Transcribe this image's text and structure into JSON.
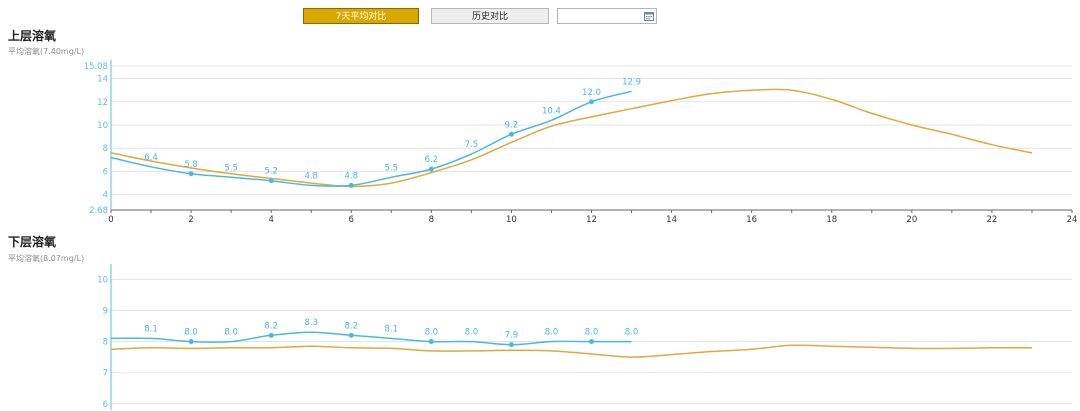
{
  "toolbar": {
    "btn_7day": "7天平均对比",
    "btn_history": "历史对比",
    "date_value": "",
    "calendar_icon": "calendar-icon"
  },
  "colors": {
    "actual": "#4ab9e0",
    "average": "#e0a93a",
    "axis": "#5bbfe6",
    "grid": "#e4e4e4",
    "active_button": "#d9a800"
  },
  "upper": {
    "title": "上层溶氧",
    "subtitle": "平均溶氧(7.40mg/L)"
  },
  "lower": {
    "title": "下层溶氧",
    "subtitle": "平均溶氧(8.07mg/L)"
  },
  "chart_data": [
    {
      "type": "line",
      "title": "上层溶氧",
      "xlabel": "",
      "ylabel": "",
      "xlim": [
        0,
        24
      ],
      "ylim": [
        2.68,
        15.08
      ],
      "x_ticks": [
        0,
        2,
        4,
        6,
        8,
        10,
        12,
        14,
        16,
        18,
        20,
        22,
        24
      ],
      "y_ticks": [
        2.68,
        4,
        6,
        8,
        10,
        12,
        14,
        15.08
      ],
      "grid": true,
      "legend": "none",
      "series": [
        {
          "role": "actual",
          "x": [
            0,
            1,
            2,
            3,
            4,
            5,
            6,
            7,
            8,
            9,
            10,
            11,
            12,
            13
          ],
          "y": [
            7.2,
            6.4,
            5.8,
            5.5,
            5.2,
            4.8,
            4.8,
            5.5,
            6.2,
            7.5,
            9.2,
            10.4,
            12.0,
            12.9
          ],
          "labels": [
            "",
            "6.4",
            "5.8",
            "5.5",
            "5.2",
            "4.8",
            "4.8",
            "5.5",
            "6.2",
            "7.5",
            "9.2",
            "10.4",
            "12.0",
            "12.9"
          ],
          "markers_at": [
            2,
            4,
            6,
            8,
            10,
            12
          ]
        },
        {
          "role": "average",
          "x": [
            0,
            1,
            2,
            3,
            4,
            5,
            6,
            7,
            8,
            9,
            10,
            11,
            12,
            13,
            14,
            15,
            16,
            17,
            18,
            19,
            20,
            21,
            22,
            23
          ],
          "y": [
            7.6,
            6.9,
            6.3,
            5.8,
            5.4,
            5.0,
            4.7,
            5.0,
            5.9,
            7.0,
            8.5,
            9.9,
            10.7,
            11.4,
            12.1,
            12.7,
            13.0,
            13.0,
            12.2,
            11.0,
            10.0,
            9.2,
            8.3,
            7.6
          ]
        }
      ]
    },
    {
      "type": "line",
      "title": "下层溶氧",
      "xlabel": "",
      "ylabel": "",
      "xlim": [
        0,
        24
      ],
      "ylim": [
        5.8,
        10.3
      ],
      "y_ticks": [
        6,
        7,
        8,
        9,
        10
      ],
      "grid": true,
      "legend": "none",
      "series": [
        {
          "role": "actual",
          "x": [
            0,
            1,
            2,
            3,
            4,
            5,
            6,
            7,
            8,
            9,
            10,
            11,
            12,
            13
          ],
          "y": [
            8.1,
            8.1,
            8.0,
            8.0,
            8.2,
            8.3,
            8.2,
            8.1,
            8.0,
            8.0,
            7.9,
            8.0,
            8.0,
            8.0
          ],
          "labels": [
            "",
            "8.1",
            "8.0",
            "8.0",
            "8.2",
            "8.3",
            "8.2",
            "8.1",
            "8.0",
            "8.0",
            "7.9",
            "8.0",
            "8.0",
            "8.0"
          ],
          "markers_at": [
            2,
            4,
            6,
            8,
            10,
            12
          ]
        },
        {
          "role": "average",
          "x": [
            0,
            1,
            2,
            3,
            4,
            5,
            6,
            7,
            8,
            9,
            10,
            11,
            12,
            13,
            14,
            15,
            16,
            17,
            18,
            19,
            20,
            21,
            22,
            23
          ],
          "y": [
            7.75,
            7.8,
            7.78,
            7.8,
            7.8,
            7.85,
            7.8,
            7.78,
            7.7,
            7.7,
            7.72,
            7.7,
            7.6,
            7.5,
            7.58,
            7.68,
            7.75,
            7.88,
            7.85,
            7.82,
            7.78,
            7.78,
            7.8,
            7.8
          ]
        }
      ]
    }
  ]
}
